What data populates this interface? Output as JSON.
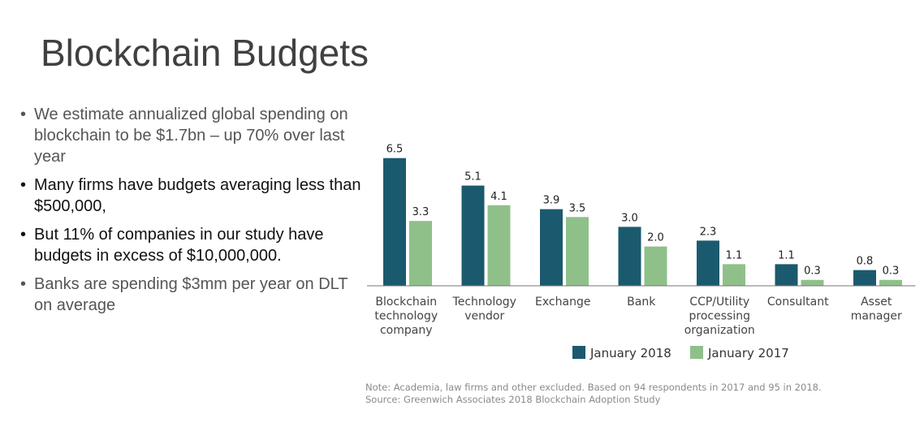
{
  "slide": {
    "title": "Blockchain Budgets"
  },
  "bullets": [
    {
      "text": "We estimate annualized global spending on blockchain to be $1.7bn – up 70% over last year",
      "tone": "grey"
    },
    {
      "text": "Many firms have budgets averaging less than $500,000,",
      "tone": "black"
    },
    {
      "text": "But 11% of companies in our study have budgets in excess of $10,000,000.",
      "tone": "black"
    },
    {
      "text": "Banks are spending $3mm per year on DLT on average",
      "tone": "grey"
    }
  ],
  "chart_data": {
    "type": "bar",
    "categories": [
      [
        "Blockchain",
        "technology",
        "company"
      ],
      [
        "Technology",
        "vendor"
      ],
      [
        "Exchange"
      ],
      [
        "Bank"
      ],
      [
        "CCP/Utility",
        "processing",
        "organization"
      ],
      [
        "Consultant"
      ],
      [
        "Asset",
        "manager"
      ]
    ],
    "series": [
      {
        "name": "January 2018",
        "color": "#1b5a6e",
        "values": [
          6.5,
          5.1,
          3.9,
          3.0,
          2.3,
          1.1,
          0.8
        ]
      },
      {
        "name": "January 2017",
        "color": "#8fc08a",
        "values": [
          3.3,
          4.1,
          3.5,
          2.0,
          1.1,
          0.3,
          0.3
        ]
      }
    ],
    "value_labels": [
      [
        "6.5",
        "5.1",
        "3.9",
        "3.0",
        "2.3",
        "1.1",
        "0.8"
      ],
      [
        "3.3",
        "4.1",
        "3.5",
        "2.0",
        "1.1",
        "0.3",
        "0.3"
      ]
    ],
    "ylim": [
      0,
      7
    ],
    "legend_position": "bottom"
  },
  "note": {
    "line1": "Note: Academia, law firms and other excluded. Based on 94 respondents in 2017 and 95 in 2018.",
    "line2": "Source: Greenwich Associates 2018 Blockchain Adoption Study"
  }
}
